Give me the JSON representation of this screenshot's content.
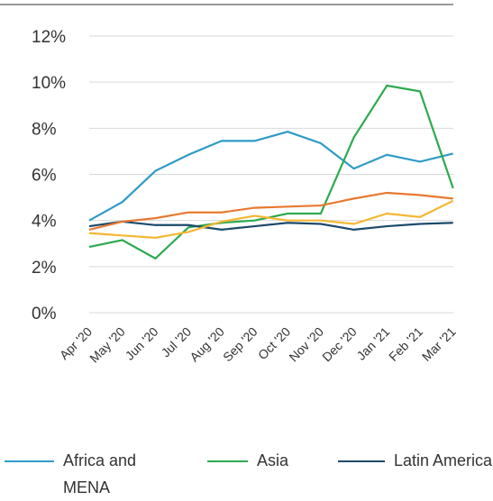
{
  "chart_data": {
    "type": "line",
    "categories": [
      "Apr '20",
      "May '20",
      "Jun '20",
      "Jul '20",
      "Aug '20",
      "Sep '20",
      "Oct '20",
      "Nov '20",
      "Dec '20",
      "Jan '21",
      "Feb '21",
      "Mar '21"
    ],
    "series": [
      {
        "name": "Africa and MENA",
        "color": "#2e9bc6",
        "values": [
          4.0,
          4.8,
          6.15,
          6.85,
          7.45,
          7.45,
          7.85,
          7.35,
          6.25,
          6.85,
          6.55,
          6.9
        ]
      },
      {
        "name": "Asia",
        "color": "#2daa4f",
        "values": [
          2.85,
          3.15,
          2.35,
          3.7,
          3.9,
          4.0,
          4.3,
          4.3,
          7.6,
          9.85,
          9.6,
          5.4
        ]
      },
      {
        "name": "Latin America",
        "color": "#1b4a6b",
        "values": [
          3.75,
          3.95,
          3.8,
          3.8,
          3.6,
          3.75,
          3.9,
          3.85,
          3.6,
          3.75,
          3.85,
          3.9
        ]
      },
      {
        "color": "#e8792f",
        "values": [
          3.6,
          3.95,
          4.1,
          4.35,
          4.35,
          4.55,
          4.6,
          4.65,
          4.95,
          5.2,
          5.1,
          4.95
        ]
      },
      {
        "color": "#f5b733",
        "values": [
          3.45,
          3.35,
          3.25,
          3.5,
          3.95,
          4.2,
          4.0,
          4.0,
          3.85,
          4.3,
          4.15,
          4.85
        ]
      }
    ],
    "ylim": [
      0,
      12
    ],
    "yticks": [
      {
        "value": 0,
        "label": "0%"
      },
      {
        "value": 2,
        "label": "2%"
      },
      {
        "value": 4,
        "label": "4%"
      },
      {
        "value": 6,
        "label": "6%"
      },
      {
        "value": 8,
        "label": "8%"
      },
      {
        "value": 10,
        "label": "10%"
      },
      {
        "value": 12,
        "label": "12%"
      }
    ],
    "grid": true
  }
}
